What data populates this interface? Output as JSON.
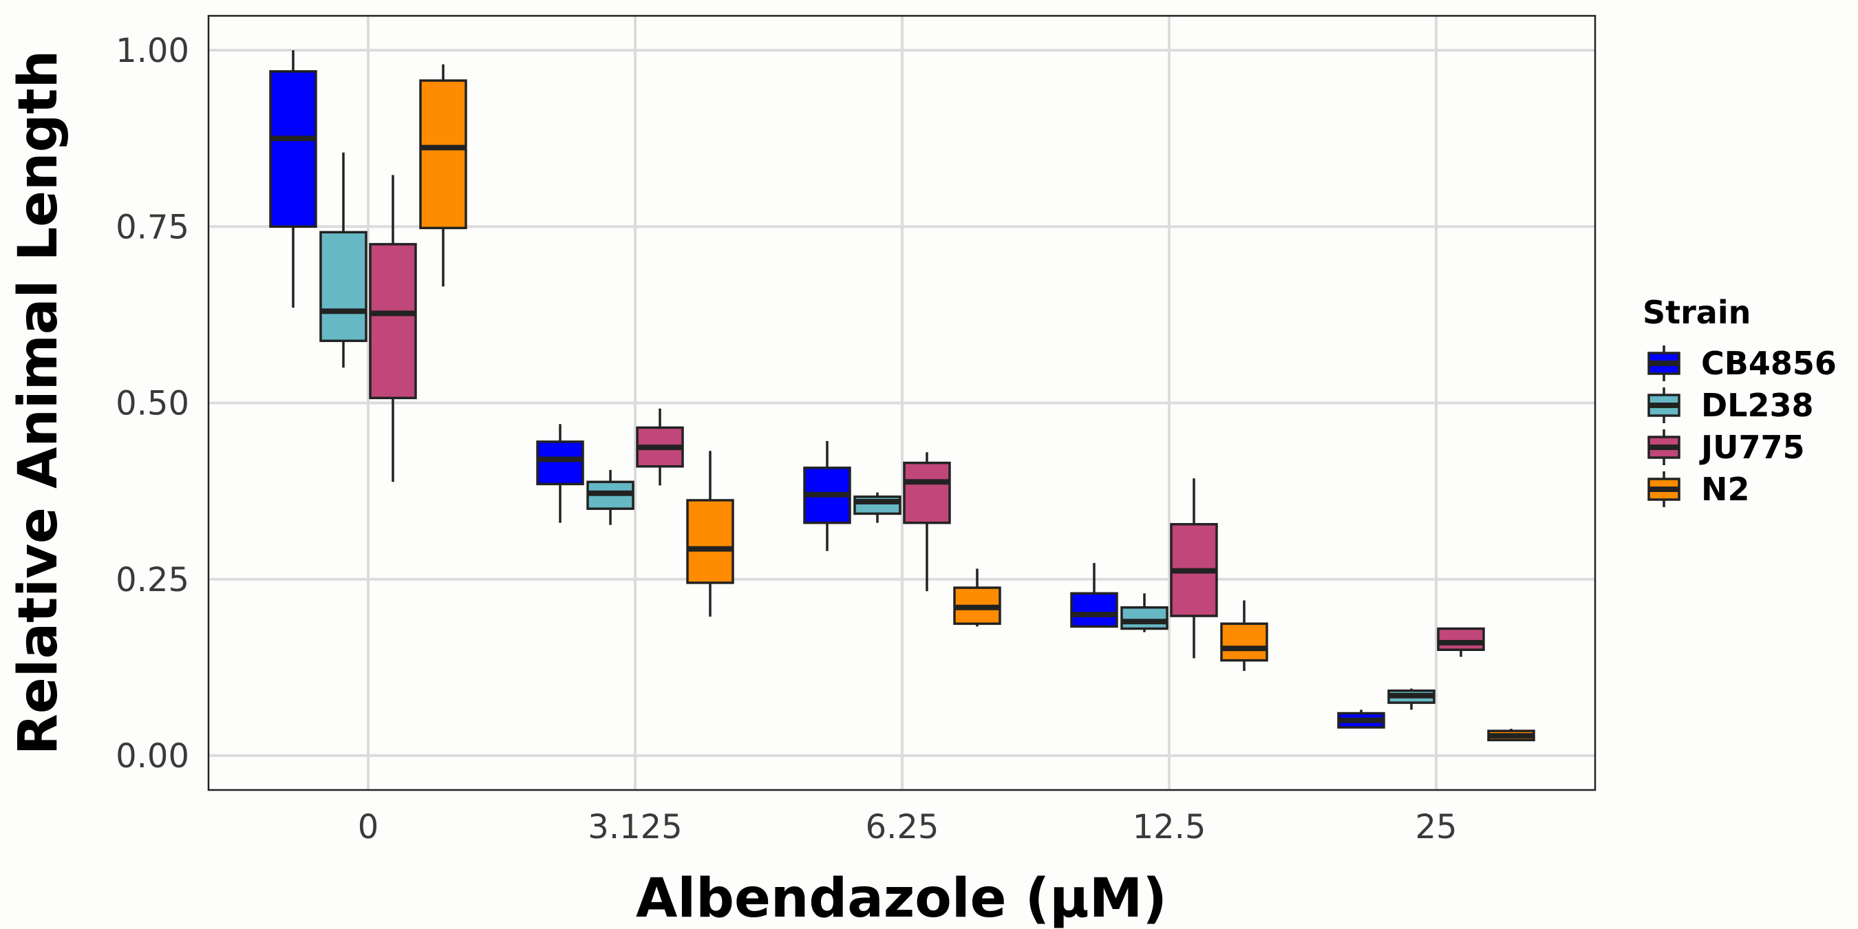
{
  "chart_data": {
    "type": "boxplot",
    "title": "",
    "xlabel": "Albendazole (µM)",
    "ylabel": "Relative Animal Length",
    "ylim": [
      -0.05,
      1.05
    ],
    "yticks": [
      "0.00",
      "0.25",
      "0.50",
      "0.75",
      "1.00"
    ],
    "ytick_values": [
      0,
      0.25,
      0.5,
      0.75,
      1.0
    ],
    "categories": [
      "0",
      "3.125",
      "6.25",
      "12.5",
      "25"
    ],
    "grid": true,
    "legend": {
      "title": "Strain",
      "position": "right"
    },
    "series": [
      {
        "name": "CB4856",
        "color": "#0000ff",
        "boxes": [
          {
            "min": 0.635,
            "q1": 0.75,
            "median": 0.875,
            "q3": 0.97,
            "max": 1.0
          },
          {
            "min": 0.33,
            "q1": 0.385,
            "median": 0.42,
            "q3": 0.445,
            "max": 0.47
          },
          {
            "min": 0.29,
            "q1": 0.33,
            "median": 0.37,
            "q3": 0.408,
            "max": 0.446
          },
          {
            "min": 0.183,
            "q1": 0.183,
            "median": 0.2,
            "q3": 0.23,
            "max": 0.273
          },
          {
            "min": 0.04,
            "q1": 0.04,
            "median": 0.05,
            "q3": 0.06,
            "max": 0.065
          }
        ]
      },
      {
        "name": "DL238",
        "color": "#66b8c4",
        "boxes": [
          {
            "min": 0.55,
            "q1": 0.588,
            "median": 0.63,
            "q3": 0.742,
            "max": 0.855
          },
          {
            "min": 0.327,
            "q1": 0.35,
            "median": 0.372,
            "q3": 0.388,
            "max": 0.405
          },
          {
            "min": 0.33,
            "q1": 0.343,
            "median": 0.36,
            "q3": 0.367,
            "max": 0.373
          },
          {
            "min": 0.175,
            "q1": 0.18,
            "median": 0.19,
            "q3": 0.21,
            "max": 0.23
          },
          {
            "min": 0.065,
            "q1": 0.075,
            "median": 0.085,
            "q3": 0.092,
            "max": 0.095
          }
        ]
      },
      {
        "name": "JU775",
        "color": "#c1467a",
        "boxes": [
          {
            "min": 0.388,
            "q1": 0.507,
            "median": 0.627,
            "q3": 0.725,
            "max": 0.823
          },
          {
            "min": 0.383,
            "q1": 0.41,
            "median": 0.437,
            "q3": 0.465,
            "max": 0.492
          },
          {
            "min": 0.233,
            "q1": 0.33,
            "median": 0.388,
            "q3": 0.415,
            "max": 0.43
          },
          {
            "min": 0.138,
            "q1": 0.198,
            "median": 0.262,
            "q3": 0.328,
            "max": 0.393
          },
          {
            "min": 0.14,
            "q1": 0.15,
            "median": 0.16,
            "q3": 0.18,
            "max": 0.18
          }
        ]
      },
      {
        "name": "N2",
        "color": "#ff8c00",
        "boxes": [
          {
            "min": 0.665,
            "q1": 0.748,
            "median": 0.862,
            "q3": 0.957,
            "max": 0.98
          },
          {
            "min": 0.197,
            "q1": 0.245,
            "median": 0.293,
            "q3": 0.362,
            "max": 0.432
          },
          {
            "min": 0.183,
            "q1": 0.187,
            "median": 0.21,
            "q3": 0.238,
            "max": 0.265
          },
          {
            "min": 0.12,
            "q1": 0.135,
            "median": 0.152,
            "q3": 0.187,
            "max": 0.22
          },
          {
            "min": 0.022,
            "q1": 0.022,
            "median": 0.028,
            "q3": 0.035,
            "max": 0.038
          }
        ]
      }
    ]
  }
}
